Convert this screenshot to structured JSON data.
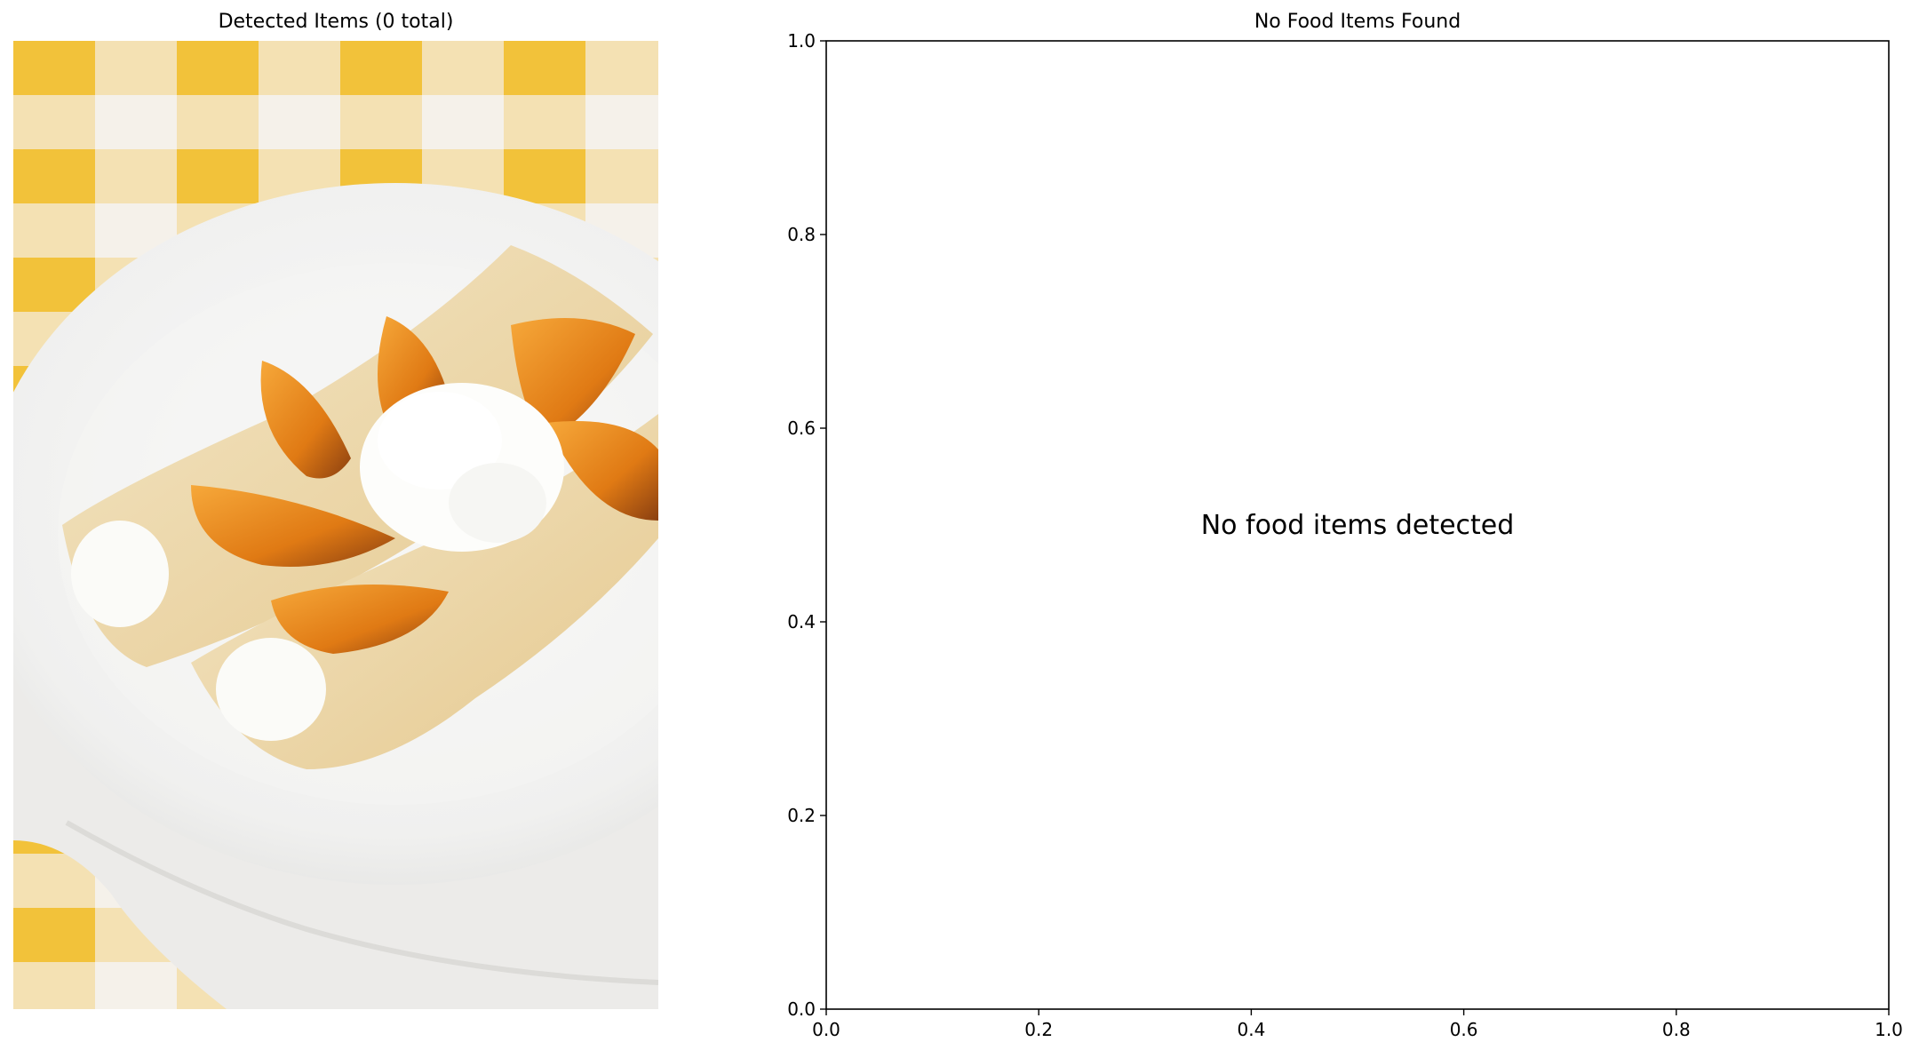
{
  "left_panel": {
    "title": "Detected Items (0 total)"
  },
  "right_panel": {
    "title": "No Food Items Found",
    "message": "No food items detected"
  },
  "chart_data": {
    "type": "scatter",
    "title": "No Food Items Found",
    "xlabel": "",
    "ylabel": "",
    "xlim": [
      0,
      1
    ],
    "ylim": [
      0,
      1
    ],
    "xticks": [
      0.0,
      0.2,
      0.4,
      0.6,
      0.8,
      1.0
    ],
    "yticks": [
      0.0,
      0.2,
      0.4,
      0.6,
      0.8,
      1.0
    ],
    "xtick_labels": [
      "0.0",
      "0.2",
      "0.4",
      "0.6",
      "0.8",
      "1.0"
    ],
    "ytick_labels": [
      "0.0",
      "0.2",
      "0.4",
      "0.6",
      "0.8",
      "1.0"
    ],
    "series": [],
    "annotation": {
      "text": "No food items detected",
      "x": 0.5,
      "y": 0.5
    },
    "grid": false
  },
  "colors": {
    "checker_yellow": "#f2c23a",
    "checker_light": "#f6ead0",
    "plate": "#f3f3f2",
    "napkin": "#ecebe9",
    "crepe": "#ecd9ad",
    "peach": "#e98a1c",
    "cream": "#fbfbf8"
  }
}
